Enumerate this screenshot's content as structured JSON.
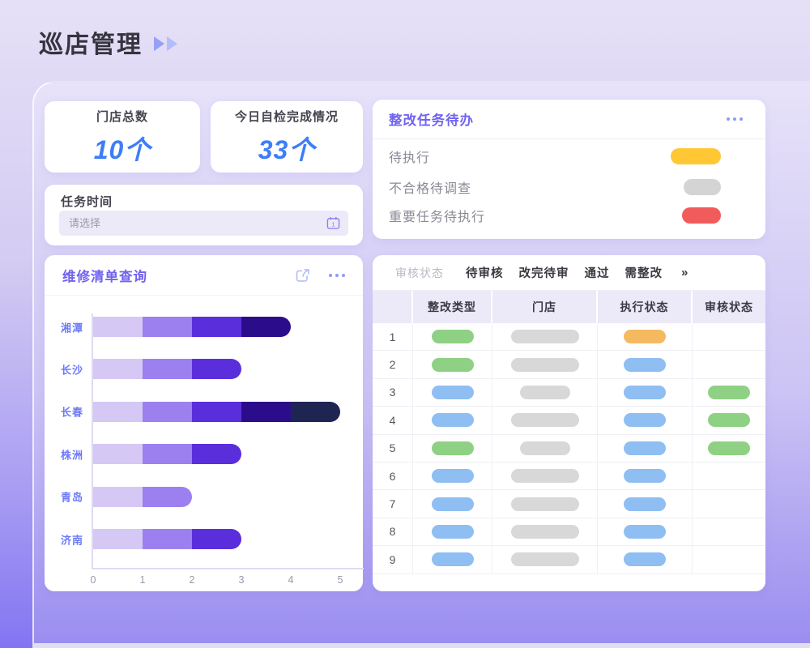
{
  "page": {
    "title": "巡店管理"
  },
  "colors": {
    "accent_purple": "#7163F0",
    "stat_blue": "#3D7EF8",
    "bar_segments": [
      "#D5C8F4",
      "#9C80EF",
      "#5B2EDC",
      "#2B0D8C",
      "#1F2553"
    ],
    "pill_yellow": "#FFC734",
    "pill_gray": "#D4D4D4",
    "pill_red": "#F25B5B",
    "cell_green": "#8FD184",
    "cell_blue": "#8FBEF2",
    "cell_gray": "#D8D8D8",
    "cell_orange": "#F5BA5F"
  },
  "stats": [
    {
      "label": "门店总数",
      "value": "10个"
    },
    {
      "label": "今日自检完成情况",
      "value": "33个"
    }
  ],
  "task_time": {
    "label": "任务时间",
    "placeholder": "请选择",
    "icon": "calendar-icon"
  },
  "todo": {
    "title": "整改任务待办",
    "menu_icon": "ellipsis-icon",
    "items": [
      {
        "label": "待执行",
        "pill_color": "pill_yellow",
        "pill_width": 62
      },
      {
        "label": "不合格待调查",
        "pill_color": "pill_gray",
        "pill_width": 46
      },
      {
        "label": "重要任务待执行",
        "pill_color": "pill_red",
        "pill_width": 48
      }
    ]
  },
  "repair": {
    "title": "维修清单查询",
    "icons": [
      "share-icon",
      "ellipsis-icon"
    ]
  },
  "chart_data": {
    "type": "bar",
    "orientation": "horizontal",
    "stacked": true,
    "title": "",
    "xlabel": "",
    "ylabel": "",
    "categories": [
      "湘潭",
      "长沙",
      "长春",
      "株洲",
      "青岛",
      "济南"
    ],
    "series": [
      {
        "name": "segment-1",
        "values": [
          1,
          1,
          1,
          1,
          1,
          1
        ]
      },
      {
        "name": "segment-2",
        "values": [
          1,
          1,
          1,
          1,
          1,
          1
        ]
      },
      {
        "name": "segment-3",
        "values": [
          1,
          1,
          1,
          1,
          0,
          1
        ]
      },
      {
        "name": "segment-4",
        "values": [
          1,
          0,
          1,
          0,
          0,
          0
        ]
      },
      {
        "name": "segment-5",
        "values": [
          0,
          0,
          1,
          0,
          0,
          0
        ]
      }
    ],
    "totals": [
      4,
      3,
      5,
      3,
      2,
      3
    ],
    "xlim": [
      0,
      5
    ],
    "xticks": [
      "0",
      "1",
      "2",
      "3",
      "4",
      "5"
    ],
    "grid": false,
    "legend": false
  },
  "table": {
    "filter_label": "审核状态",
    "filters": [
      "待审核",
      "改完待审",
      "通过",
      "需整改"
    ],
    "more": "»",
    "columns": [
      "整改类型",
      "门店",
      "执行状态",
      "审核状态"
    ],
    "rows": [
      {
        "num": "1",
        "cells": [
          "green",
          "grayW",
          "orange",
          ""
        ]
      },
      {
        "num": "2",
        "cells": [
          "green",
          "grayW",
          "blue",
          ""
        ]
      },
      {
        "num": "3",
        "cells": [
          "blue",
          "grayS",
          "blue",
          "green"
        ]
      },
      {
        "num": "4",
        "cells": [
          "blue",
          "grayW",
          "blue",
          "green"
        ]
      },
      {
        "num": "5",
        "cells": [
          "green",
          "grayS",
          "blue",
          "green"
        ]
      },
      {
        "num": "6",
        "cells": [
          "blue",
          "grayW",
          "blue",
          ""
        ]
      },
      {
        "num": "7",
        "cells": [
          "blue",
          "grayW",
          "blue",
          ""
        ]
      },
      {
        "num": "8",
        "cells": [
          "blue",
          "grayW",
          "blue",
          ""
        ]
      },
      {
        "num": "9",
        "cells": [
          "blue",
          "grayW",
          "blue",
          ""
        ]
      }
    ]
  }
}
